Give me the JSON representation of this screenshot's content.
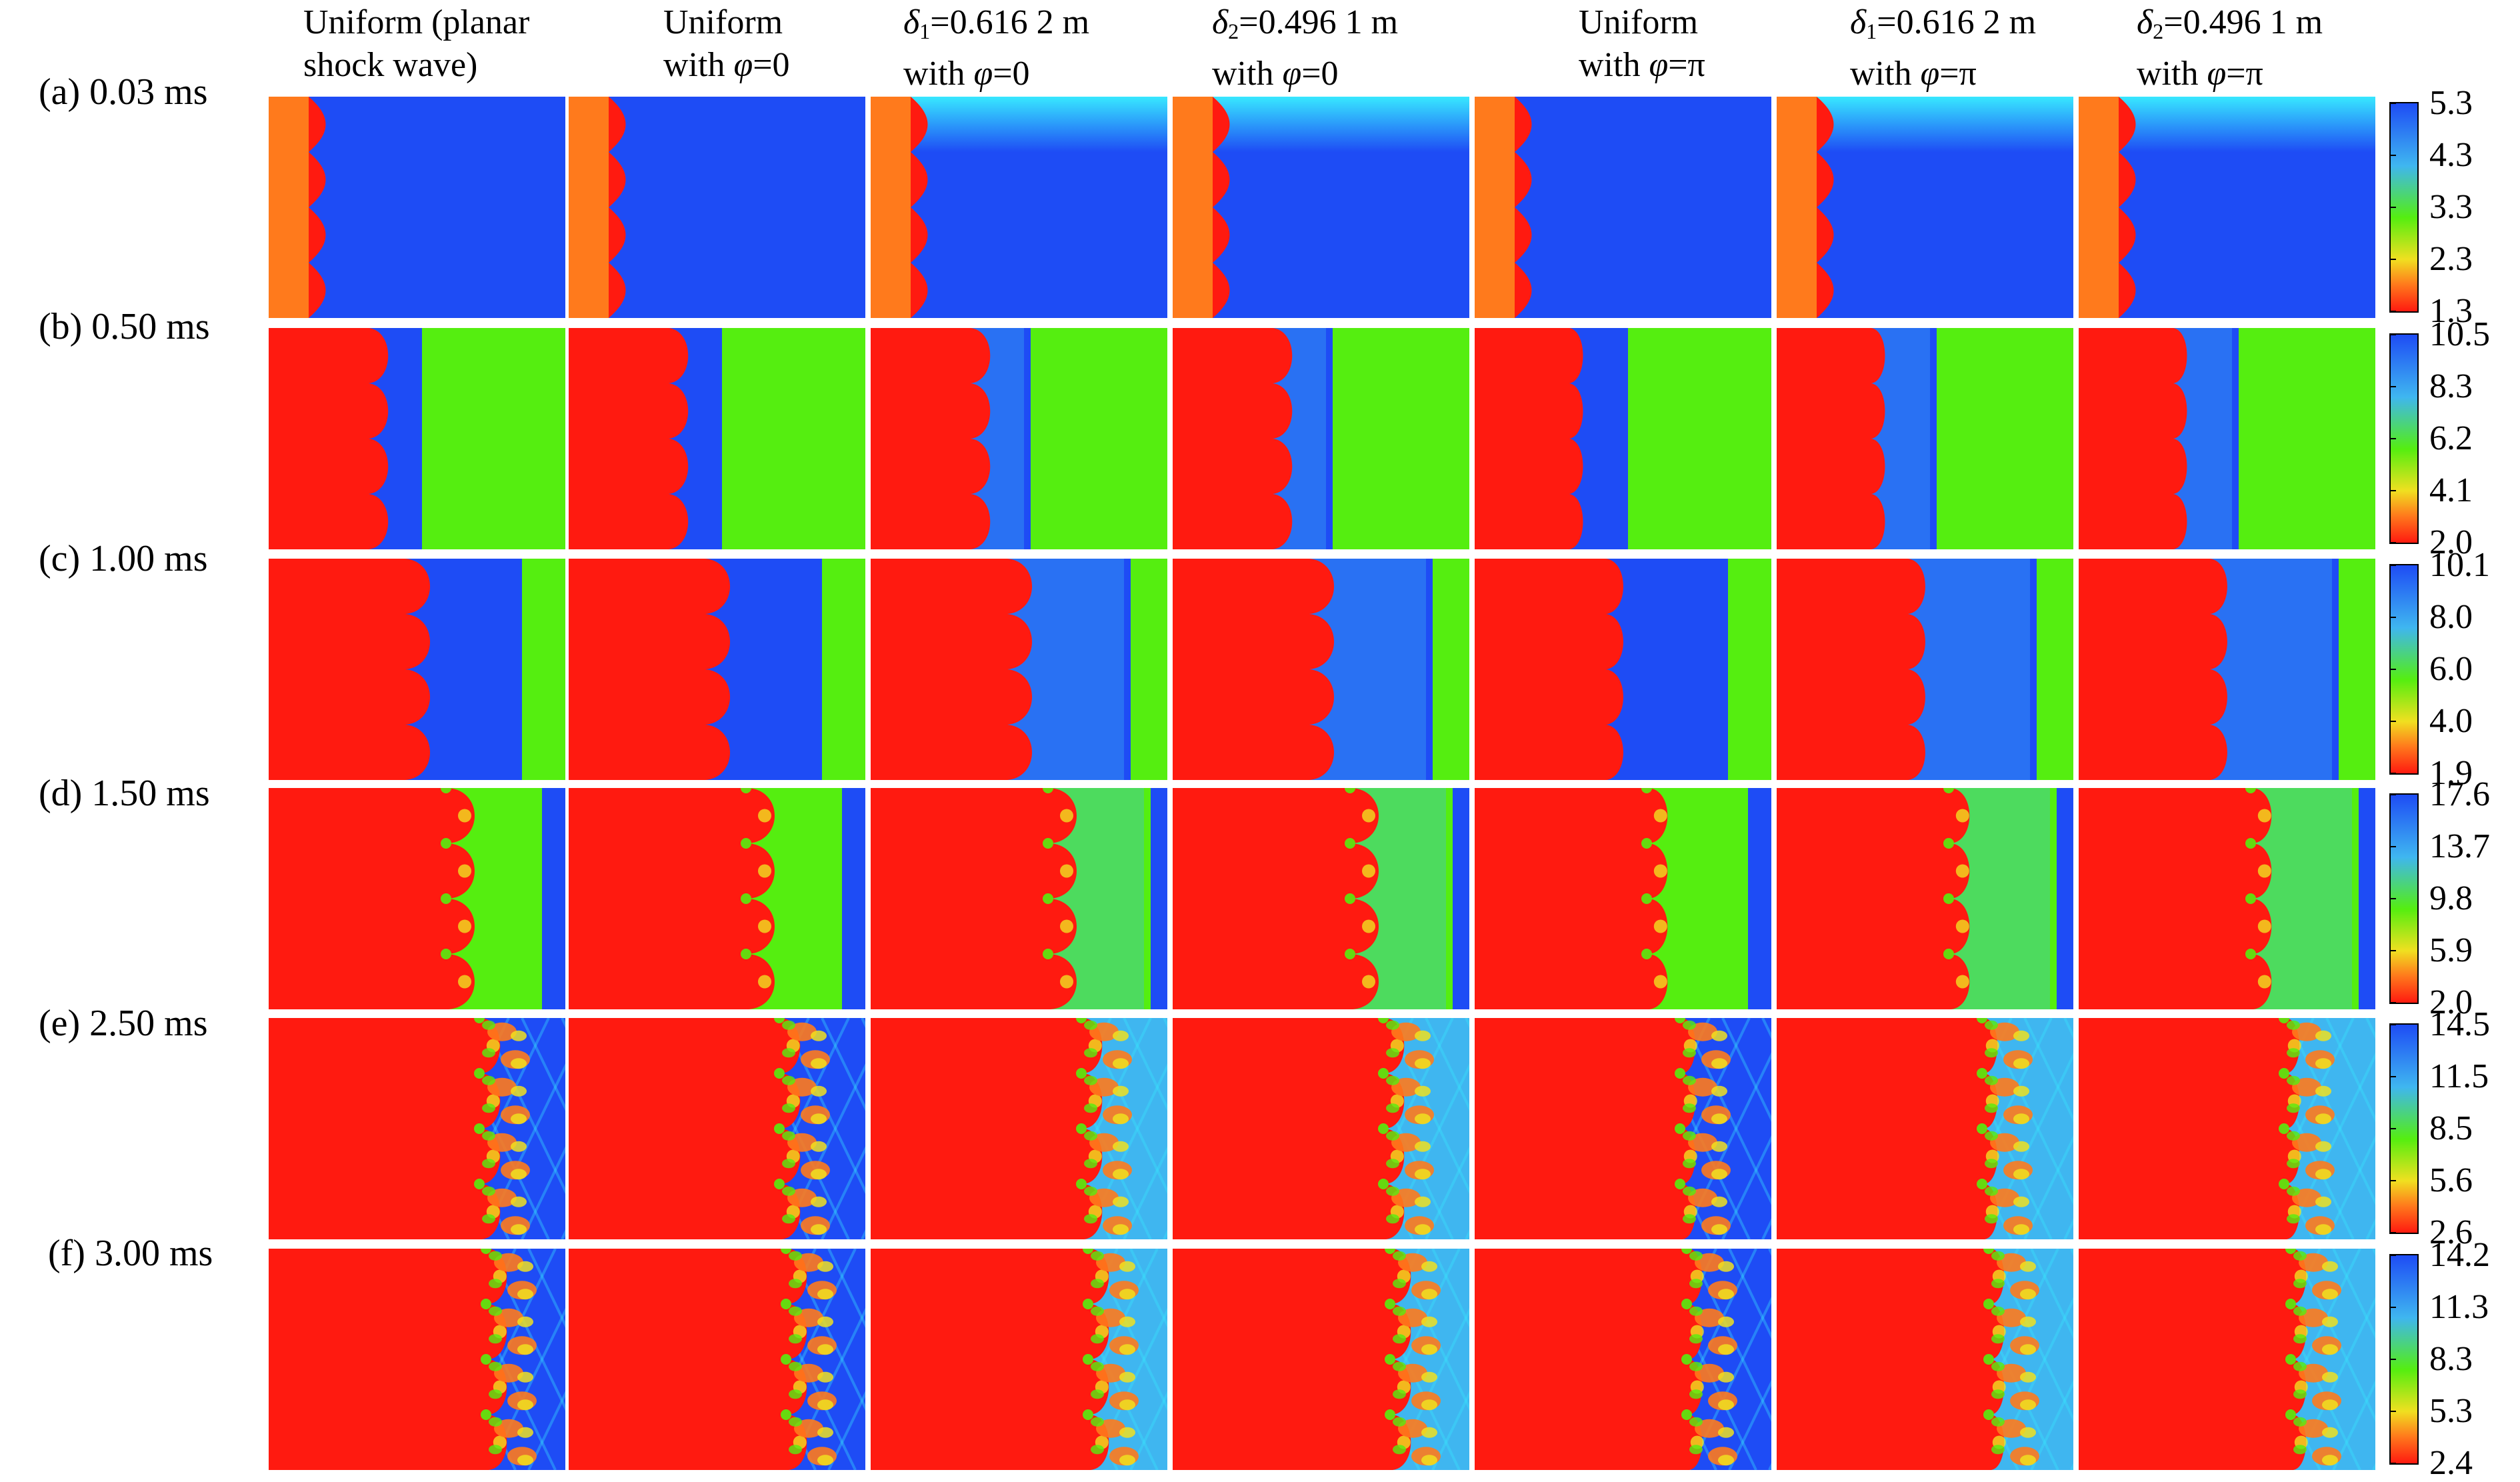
{
  "columns": [
    {
      "line1": "Uniform (planar",
      "line2": "shock wave)"
    },
    {
      "line1": "Uniform",
      "line2_pre": "with ",
      "line2_sym": "φ",
      "line2_post": "=0"
    },
    {
      "line1_sym": "δ",
      "line1_sub": "1",
      "line1_post": "=0.616 2 m",
      "line2_pre": "with ",
      "line2_sym": "φ",
      "line2_post": "=0"
    },
    {
      "line1_sym": "δ",
      "line1_sub": "2",
      "line1_post": "=0.496 1 m",
      "line2_pre": "with ",
      "line2_sym": "φ",
      "line2_post": "=0"
    },
    {
      "line1": "Uniform",
      "line2_pre": "with ",
      "line2_sym": "φ",
      "line2_post": "=π"
    },
    {
      "line1_sym": "δ",
      "line1_sub": "1",
      "line1_post": "=0.616 2 m",
      "line2_pre": "with ",
      "line2_sym": "φ",
      "line2_post": "=π"
    },
    {
      "line1_sym": "δ",
      "line1_sub": "2",
      "line1_post": "=0.496 1 m",
      "line2_pre": "with ",
      "line2_sym": "φ",
      "line2_post": "=π"
    }
  ],
  "rows": [
    {
      "label": "(a) 0.03 ms",
      "ticks": [
        "5.3",
        "4.3",
        "3.3",
        "2.3",
        "1.3"
      ]
    },
    {
      "label": "(b) 0.50 ms",
      "ticks": [
        "10.5",
        "8.3",
        "6.2",
        "4.1",
        "2.0"
      ]
    },
    {
      "label": "(c) 1.00 ms",
      "ticks": [
        "10.1",
        "8.0",
        "6.0",
        "4.0",
        "1.9"
      ]
    },
    {
      "label": "(d) 1.50 ms",
      "ticks": [
        "17.6",
        "13.7",
        "9.8",
        "5.9",
        "2.0"
      ]
    },
    {
      "label": "(e) 2.50 ms",
      "ticks": [
        "14.5",
        "11.5",
        "8.5",
        "5.6",
        "2.6"
      ]
    },
    {
      "label": "(f) 3.00 ms",
      "ticks": [
        "14.2",
        "11.3",
        "8.3",
        "5.3",
        "2.4"
      ]
    }
  ],
  "colors": {
    "red": "#ff1a10",
    "orange": "#ff7a1c",
    "blue": "#1e4cf5",
    "light_blue": "#3fb6f0",
    "green": "#55ee10",
    "cyan": "#38e8ff",
    "yellow": "#f0e020"
  }
}
